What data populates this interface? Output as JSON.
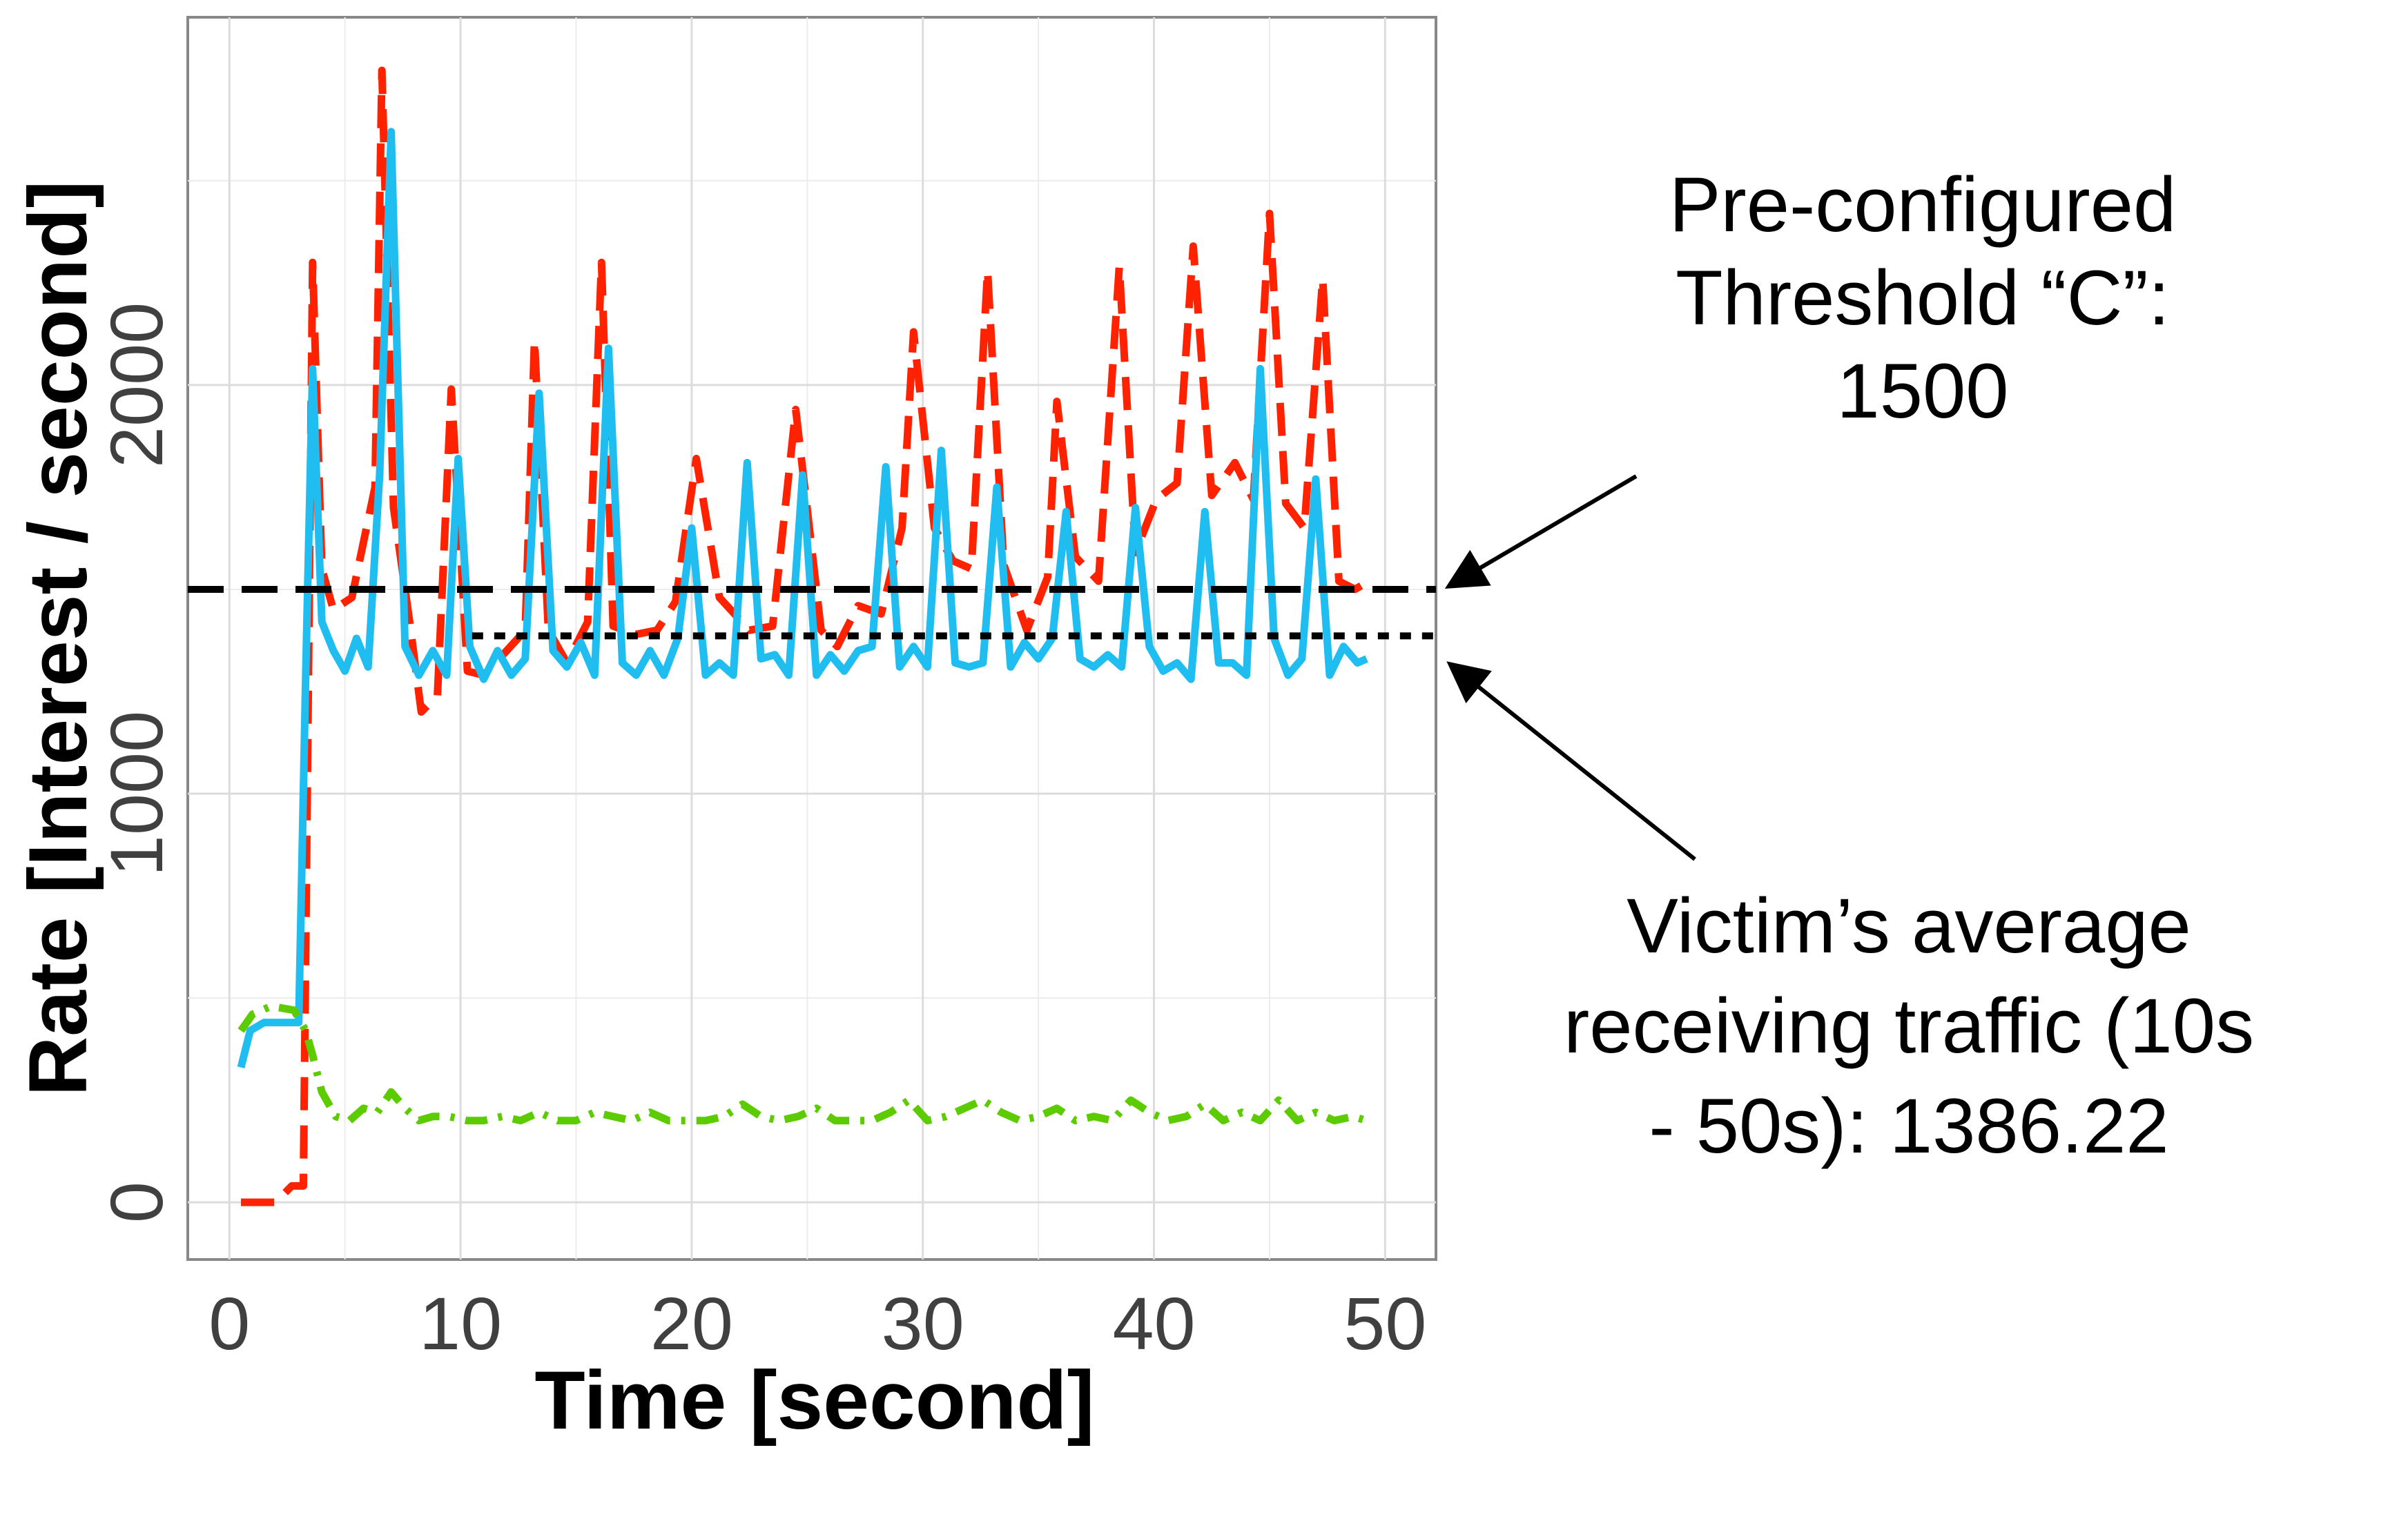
{
  "chart_data": {
    "type": "line",
    "xlabel": "Time [second]",
    "ylabel": "Rate [Interest / second]",
    "xlim": [
      -1.8,
      52.2
    ],
    "ylim": [
      -140,
      2900
    ],
    "xticks": [
      0,
      10,
      20,
      30,
      40,
      50
    ],
    "yticks": [
      0,
      1000,
      2000
    ],
    "xtick_labels": [
      "0",
      "10",
      "20",
      "30",
      "40",
      "50"
    ],
    "ytick_labels": [
      "0",
      "1000",
      "2000"
    ],
    "grid": true,
    "series": [
      {
        "color": "#ff2200",
        "style": "dashed",
        "x": [
          0.5,
          2.0,
          2.7,
          3.2,
          3.6,
          4.0,
          4.5,
          5.3,
          6.3,
          6.6,
          7.1,
          7.8,
          8.3,
          9.0,
          9.6,
          10.3,
          11.0,
          12.0,
          12.8,
          13.2,
          13.8,
          14.6,
          15.5,
          16.1,
          16.6,
          17.6,
          18.5,
          19.3,
          20.2,
          21.2,
          22.5,
          23.5,
          24.5,
          25.6,
          26.3,
          27.2,
          28.2,
          29.1,
          29.6,
          30.5,
          31.3,
          32.1,
          32.8,
          33.5,
          34.5,
          35.4,
          35.8,
          36.6,
          37.6,
          38.5,
          39.2,
          40.1,
          41.0,
          41.7,
          42.5,
          43.5,
          44.3,
          45.0,
          45.7,
          46.5,
          47.3,
          48.0,
          48.7,
          49.3
        ],
        "y": [
          0,
          0,
          40,
          40,
          2300,
          1550,
          1450,
          1480,
          1750,
          2770,
          1700,
          1420,
          1200,
          1240,
          1990,
          1300,
          1290,
          1350,
          1400,
          2110,
          1400,
          1320,
          1420,
          2300,
          1410,
          1390,
          1400,
          1470,
          1820,
          1480,
          1400,
          1410,
          1940,
          1400,
          1360,
          1460,
          1440,
          1650,
          2130,
          1650,
          1570,
          1550,
          2280,
          1560,
          1400,
          1530,
          1960,
          1580,
          1520,
          2290,
          1590,
          1720,
          1760,
          2340,
          1730,
          1810,
          1720,
          2420,
          1710,
          1650,
          2260,
          1520,
          1500,
          1520
        ]
      },
      {
        "color": "#1fbdf0",
        "style": "solid",
        "x": [
          0.5,
          0.9,
          1.5,
          2.5,
          3.0,
          3.3,
          3.6,
          4.0,
          4.5,
          5.0,
          5.5,
          6.0,
          6.5,
          7.0,
          7.6,
          8.2,
          8.8,
          9.4,
          9.9,
          10.4,
          11.0,
          11.6,
          12.2,
          12.8,
          13.4,
          14.0,
          14.6,
          15.2,
          15.8,
          16.4,
          17.0,
          17.6,
          18.2,
          18.8,
          19.4,
          20.0,
          20.6,
          21.2,
          21.8,
          22.4,
          23.0,
          23.6,
          24.2,
          24.8,
          25.4,
          26.0,
          26.6,
          27.2,
          27.8,
          28.4,
          29.0,
          29.6,
          30.2,
          30.8,
          31.4,
          32.0,
          32.6,
          33.2,
          33.8,
          34.4,
          35.0,
          35.6,
          36.2,
          36.8,
          37.4,
          38.0,
          38.6,
          39.2,
          39.8,
          40.4,
          41.0,
          41.6,
          42.2,
          42.8,
          43.4,
          44.0,
          44.6,
          45.2,
          45.8,
          46.4,
          47.0,
          47.6,
          48.2,
          48.8,
          49.2
        ],
        "y": [
          330,
          420,
          440,
          440,
          440,
          1290,
          2040,
          1420,
          1350,
          1300,
          1380,
          1310,
          1780,
          2620,
          1360,
          1290,
          1350,
          1290,
          1820,
          1360,
          1280,
          1350,
          1290,
          1330,
          1980,
          1350,
          1310,
          1370,
          1290,
          2090,
          1320,
          1290,
          1350,
          1290,
          1380,
          1650,
          1290,
          1320,
          1290,
          1810,
          1330,
          1340,
          1290,
          1780,
          1290,
          1340,
          1300,
          1350,
          1360,
          1800,
          1310,
          1360,
          1310,
          1840,
          1320,
          1310,
          1320,
          1750,
          1310,
          1370,
          1330,
          1380,
          1690,
          1330,
          1310,
          1340,
          1310,
          1700,
          1360,
          1300,
          1320,
          1280,
          1690,
          1320,
          1320,
          1290,
          2040,
          1380,
          1290,
          1330,
          1770,
          1290,
          1360,
          1320,
          1330
        ]
      },
      {
        "color": "#5ccc00",
        "style": "dashdot",
        "x": [
          0.5,
          1.0,
          1.8,
          2.8,
          3.3,
          3.6,
          4.0,
          4.6,
          5.2,
          5.8,
          6.4,
          7.0,
          7.6,
          8.2,
          8.8,
          9.5,
          10.3,
          11.0,
          11.8,
          12.6,
          13.4,
          14.2,
          15.0,
          15.8,
          16.6,
          17.4,
          18.2,
          19.0,
          19.8,
          20.6,
          21.4,
          22.2,
          23.0,
          23.8,
          24.6,
          25.4,
          26.2,
          27.0,
          27.8,
          28.6,
          29.4,
          30.2,
          31.0,
          31.8,
          32.6,
          33.4,
          34.2,
          35.0,
          35.8,
          36.6,
          37.4,
          38.2,
          39.0,
          39.8,
          40.6,
          41.4,
          42.2,
          43.0,
          43.8,
          44.6,
          45.4,
          46.2,
          47.0,
          47.8,
          48.6,
          49.2
        ],
        "y": [
          420,
          460,
          480,
          470,
          420,
          360,
          270,
          210,
          200,
          230,
          220,
          270,
          230,
          200,
          210,
          210,
          200,
          200,
          210,
          200,
          220,
          200,
          200,
          220,
          210,
          200,
          220,
          200,
          200,
          200,
          210,
          240,
          210,
          200,
          210,
          230,
          200,
          200,
          200,
          220,
          250,
          200,
          210,
          230,
          250,
          220,
          200,
          210,
          230,
          200,
          210,
          200,
          250,
          220,
          200,
          210,
          240,
          200,
          220,
          200,
          250,
          200,
          220,
          200,
          210,
          200
        ]
      }
    ],
    "reference_lines": [
      {
        "y": 1500,
        "color": "#000000",
        "style": "long-dash",
        "x_range": [
          -1.8,
          52.2
        ]
      },
      {
        "y": 1386.22,
        "color": "#000000",
        "style": "dotted",
        "x_range": [
          10.5,
          52.2
        ]
      }
    ],
    "annotations": [
      {
        "lines": [
          "Pre-configured",
          "Threshold “C”:",
          "1500"
        ],
        "points_to_y": 1500
      },
      {
        "lines": [
          "Victim’s average",
          "receiving traffic (10s",
          "- 50s): 1386.22"
        ],
        "points_to_y": 1386.22
      }
    ]
  }
}
